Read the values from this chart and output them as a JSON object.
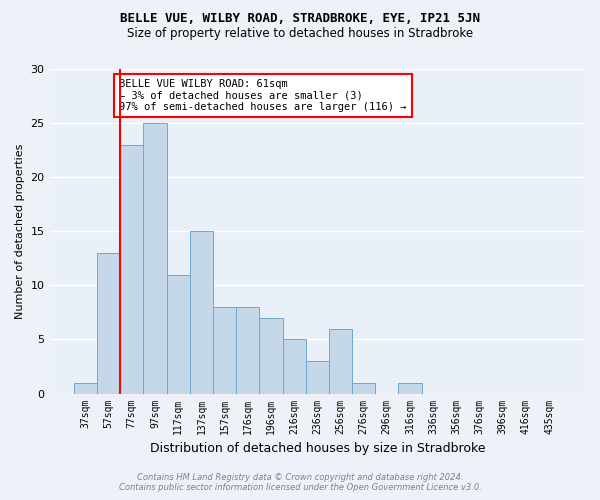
{
  "title": "BELLE VUE, WILBY ROAD, STRADBROKE, EYE, IP21 5JN",
  "subtitle": "Size of property relative to detached houses in Stradbroke",
  "xlabel": "Distribution of detached houses by size in Stradbroke",
  "ylabel": "Number of detached properties",
  "categories": [
    "37sqm",
    "57sqm",
    "77sqm",
    "97sqm",
    "117sqm",
    "137sqm",
    "157sqm",
    "176sqm",
    "196sqm",
    "216sqm",
    "236sqm",
    "256sqm",
    "276sqm",
    "296sqm",
    "316sqm",
    "336sqm",
    "356sqm",
    "376sqm",
    "396sqm",
    "416sqm",
    "435sqm"
  ],
  "values": [
    1,
    13,
    23,
    25,
    11,
    15,
    8,
    8,
    7,
    5,
    3,
    6,
    1,
    0,
    1,
    0,
    0,
    0,
    0,
    0,
    0
  ],
  "bar_color": "#c5d8ea",
  "bar_edge_color": "#6fa8d0",
  "annotation_text": "BELLE VUE WILBY ROAD: 61sqm\n← 3% of detached houses are smaller (3)\n97% of semi-detached houses are larger (116) →",
  "annotation_box_color": "white",
  "annotation_box_edge_color": "red",
  "red_line_x": 1.5,
  "ylim": [
    0,
    30
  ],
  "yticks": [
    0,
    5,
    10,
    15,
    20,
    25,
    30
  ],
  "footnote": "Contains HM Land Registry data © Crown copyright and database right 2024.\nContains public sector information licensed under the Open Government Licence v3.0.",
  "bg_color": "#eef2f8",
  "plot_bg_color": "#eaf0f8",
  "title_fontsize": 9,
  "subtitle_fontsize": 8.5,
  "ylabel_fontsize": 8,
  "xlabel_fontsize": 9,
  "tick_fontsize": 7,
  "ytick_fontsize": 8,
  "annotation_fontsize": 7.5,
  "footnote_fontsize": 6
}
